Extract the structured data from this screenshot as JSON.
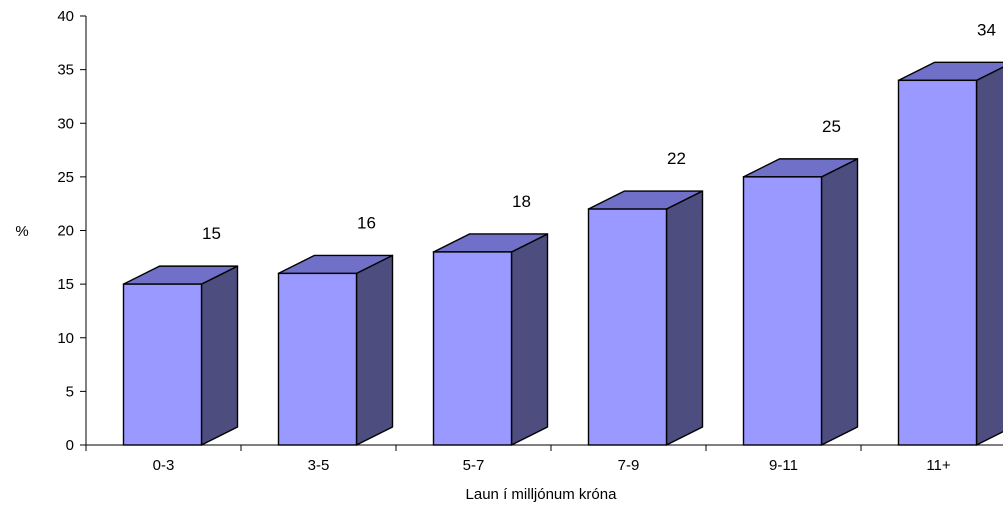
{
  "chart_data": {
    "type": "bar",
    "style": "3d",
    "categories": [
      "0-3",
      "3-5",
      "5-7",
      "7-9",
      "9-11",
      "11+"
    ],
    "values": [
      15,
      16,
      18,
      22,
      25,
      34
    ],
    "data_labels": [
      "15",
      "16",
      "18",
      "22",
      "25",
      "34"
    ],
    "ylabel": "%",
    "xlabel": "Laun í milljónum króna",
    "ylim": [
      0,
      40
    ],
    "yticks": [
      0,
      5,
      10,
      15,
      20,
      25,
      30,
      35,
      40
    ],
    "grid": false,
    "legend": "none",
    "colors": {
      "front": "#9999ff",
      "top": "#7070c8",
      "side": "#4d4d80",
      "outline": "#000000"
    }
  }
}
